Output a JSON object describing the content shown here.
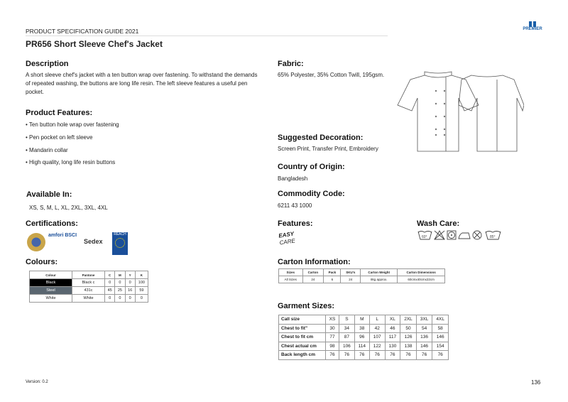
{
  "header": {
    "guide": "PRODUCT SPECIFICATION GUIDE 2021",
    "title": "PR656 Short Sleeve Chef's Jacket",
    "brand": "PREMIER"
  },
  "description": {
    "heading": "Description",
    "text": "A short sleeve chef's jacket with a ten button wrap over fastening. To withstand the demands of repeated washing, the buttons are long life resin. The left sleeve features a useful pen pocket."
  },
  "fabric": {
    "heading": "Fabric:",
    "text": "65% Polyester, 35% Cotton Twill, 195gsm."
  },
  "product_features": {
    "heading": "Product Features:",
    "items": [
      "• Ten button hole wrap over fastening",
      "• Pen pocket on left sleeve",
      "• Mandarin collar",
      "• High quality, long life resin buttons"
    ]
  },
  "decoration": {
    "heading": "Suggested Decoration:",
    "text": "Screen Print, Transfer Print, Embroidery"
  },
  "origin": {
    "heading": "Country of Origin:",
    "text": "Bangladesh"
  },
  "commodity": {
    "heading": "Commodity Code:",
    "text": "6211 43 1000"
  },
  "available": {
    "heading": "Available In:",
    "text": "XS, S, M, L, XL, 2XL, 3XL, 4XL"
  },
  "certifications": {
    "heading": "Certifications:",
    "logos": [
      "amfori BSCI",
      "Sedex",
      "REACH"
    ]
  },
  "features": {
    "heading": "Features:",
    "logo_top": "EASY",
    "logo_bottom": "CARE"
  },
  "wash_care": {
    "heading": "Wash Care:",
    "icons": [
      "wash-60-icon",
      "no-bleach-icon",
      "tumble-dry-icon",
      "iron-icon",
      "no-dry-clean-icon",
      "wash-85-icon"
    ],
    "temps": [
      "60°",
      "85°"
    ]
  },
  "colours": {
    "heading": "Colours:",
    "headers": [
      "Colour",
      "Pantone",
      "C",
      "M",
      "Y",
      "K"
    ],
    "rows": [
      {
        "cells": [
          "Black",
          "Black c",
          "0",
          "0",
          "0",
          "100"
        ],
        "swatch": "#000000"
      },
      {
        "cells": [
          "Steel",
          "431c",
          "45",
          "25",
          "16",
          "59"
        ],
        "swatch": "#5a6670"
      },
      {
        "cells": [
          "White",
          "White",
          "0",
          "0",
          "0",
          "0"
        ],
        "swatch": "#ffffff"
      }
    ]
  },
  "carton": {
    "heading": "Carton Information:",
    "headers": [
      "Sizes",
      "Carton",
      "Pack",
      "SKU's",
      "Carton Weight",
      "Carton Dimensions"
    ],
    "row": [
      "All Sizes",
      "24",
      "6",
      "24",
      "8kg approx.",
      "60cmx40cmx22cm"
    ]
  },
  "garment": {
    "heading": "Garment Sizes:",
    "rows": [
      [
        "Call size",
        "XS",
        "S",
        "M",
        "L",
        "XL",
        "2XL",
        "3XL",
        "4XL"
      ],
      [
        "Chest to fit\"",
        "30",
        "34",
        "38",
        "42",
        "46",
        "50",
        "54",
        "58"
      ],
      [
        "Chest to fit cm",
        "77",
        "87",
        "96",
        "107",
        "117",
        "126",
        "136",
        "146"
      ],
      [
        "Chest actual cm",
        "98",
        "106",
        "114",
        "122",
        "130",
        "138",
        "146",
        "154"
      ],
      [
        "Back length cm",
        "76",
        "76",
        "76",
        "76",
        "76",
        "76",
        "76",
        "76"
      ]
    ]
  },
  "footer": {
    "version": "Version: 0.2",
    "page": "136"
  }
}
